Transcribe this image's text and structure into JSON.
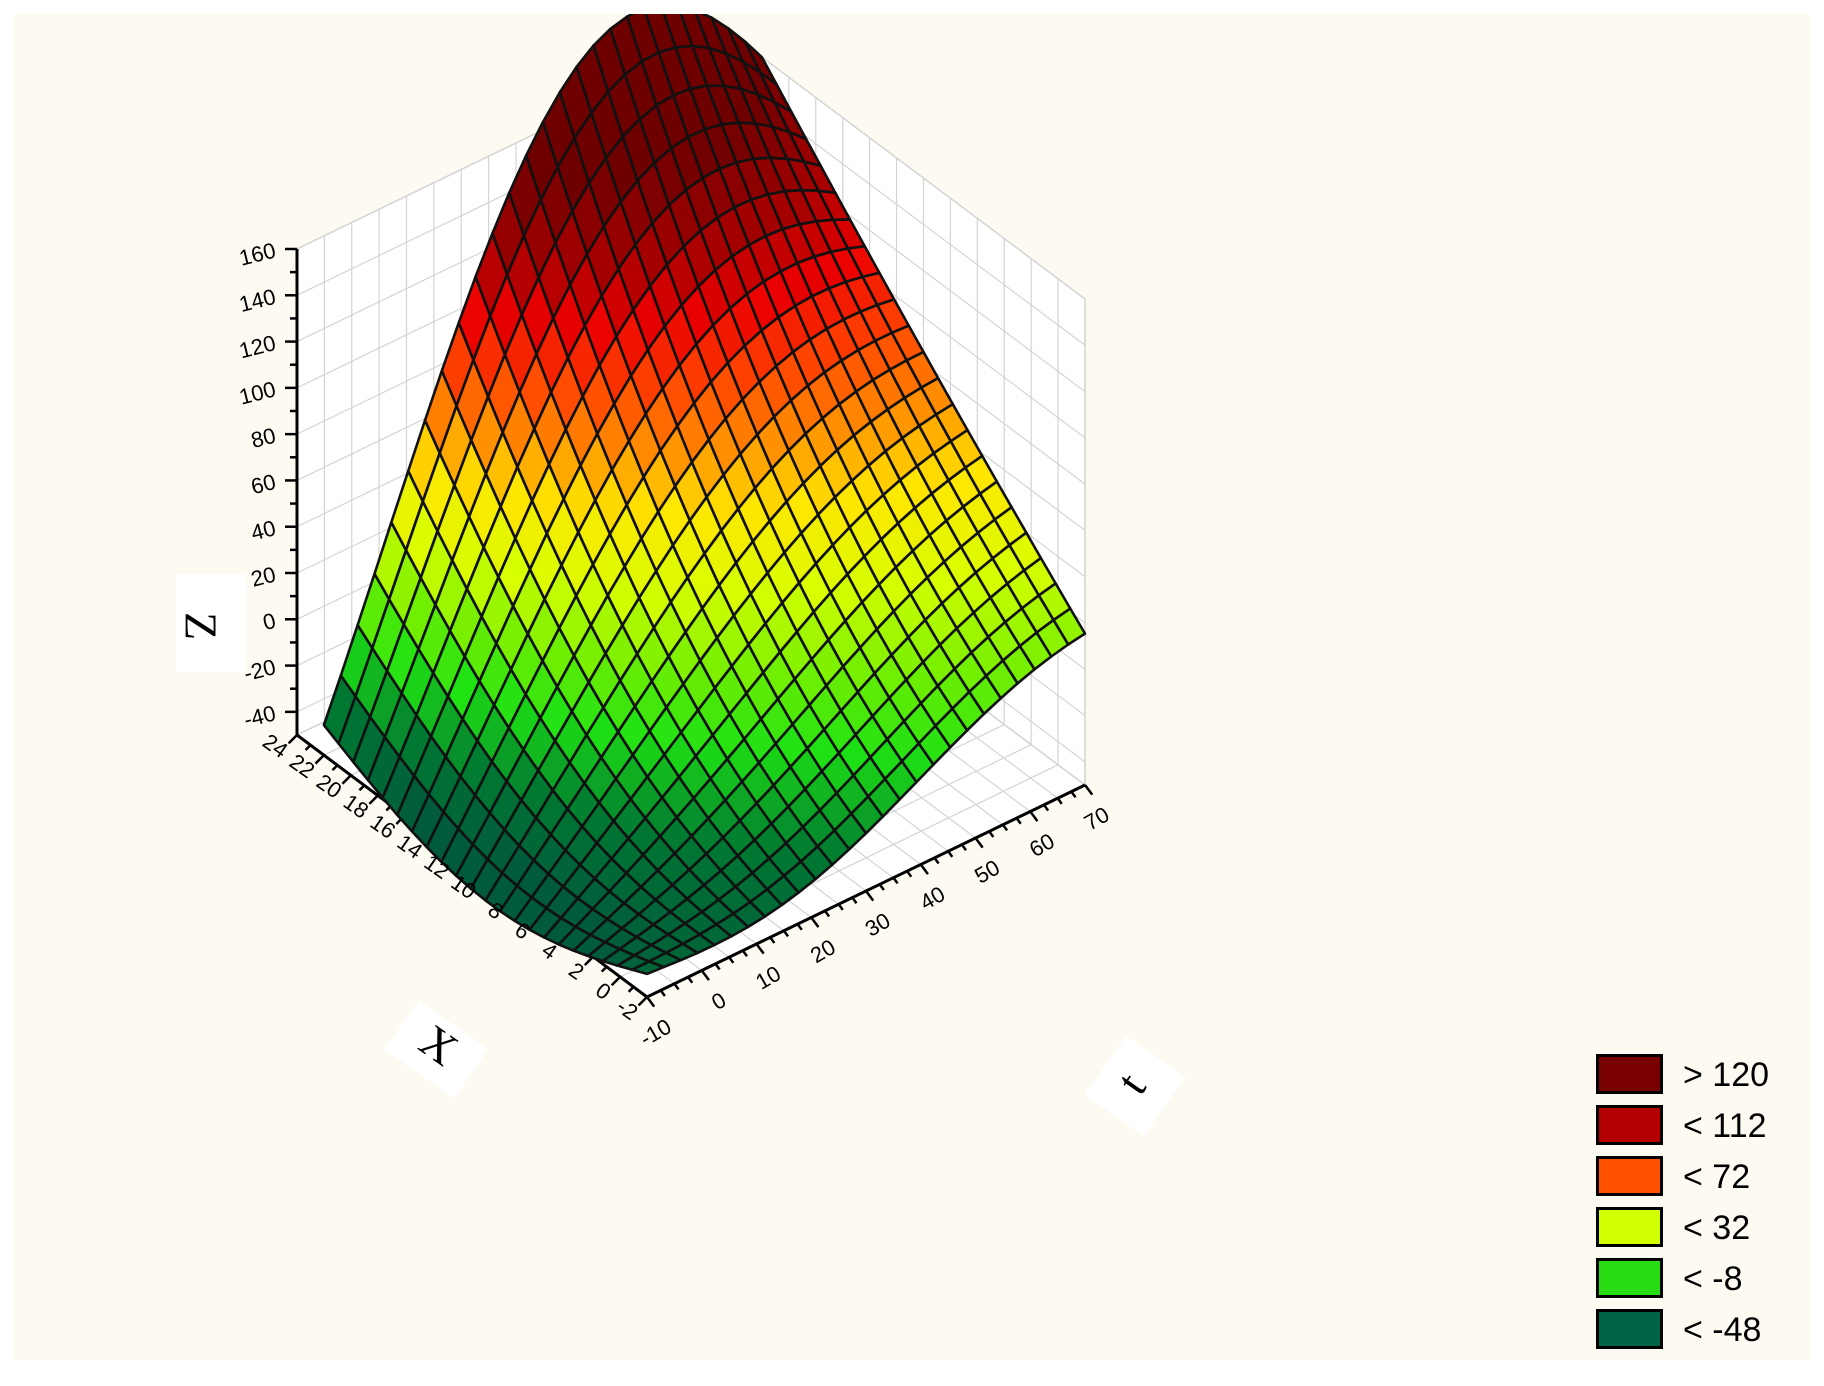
{
  "chart_data": {
    "type": "surface",
    "title": "",
    "xlabel": "t",
    "ylabel": "X",
    "zlabel": "Z",
    "x_ticks": [
      "-10",
      "0",
      "10",
      "20",
      "30",
      "40",
      "50",
      "60",
      "70"
    ],
    "y_ticks": [
      "-2",
      "0",
      "2",
      "4",
      "6",
      "8",
      "10",
      "12",
      "14",
      "16",
      "18",
      "20",
      "22",
      "24"
    ],
    "z_ticks": [
      "-40",
      "-20",
      "0",
      "20",
      "40",
      "60",
      "80",
      "100",
      "120",
      "140",
      "160"
    ],
    "xlim": [
      -10,
      70
    ],
    "ylim": [
      -2,
      24
    ],
    "zlim": [
      -50,
      160
    ],
    "grid": true,
    "surface_extent": {
      "t": [
        -10,
        70
      ],
      "X": [
        -2,
        22
      ]
    },
    "surface_corners": [
      {
        "t": -10,
        "X": 22,
        "Z": -37
      },
      {
        "t": 70,
        "X": 22,
        "Z": 160
      },
      {
        "t": 70,
        "X": -2,
        "Z": 4
      },
      {
        "t": -10,
        "X": -2,
        "Z": -40
      }
    ],
    "legend": {
      "position": "bottom-right",
      "entries": [
        {
          "label": "> 120",
          "color": "#780000"
        },
        {
          "label": "< 112",
          "color": "#b40000"
        },
        {
          "label": "< 72",
          "color": "#ff5000"
        },
        {
          "label": "< 32",
          "color": "#d2ff00"
        },
        {
          "label": "< -8",
          "color": "#28dc14"
        },
        {
          "label": "< -48",
          "color": "#006448"
        }
      ]
    }
  }
}
